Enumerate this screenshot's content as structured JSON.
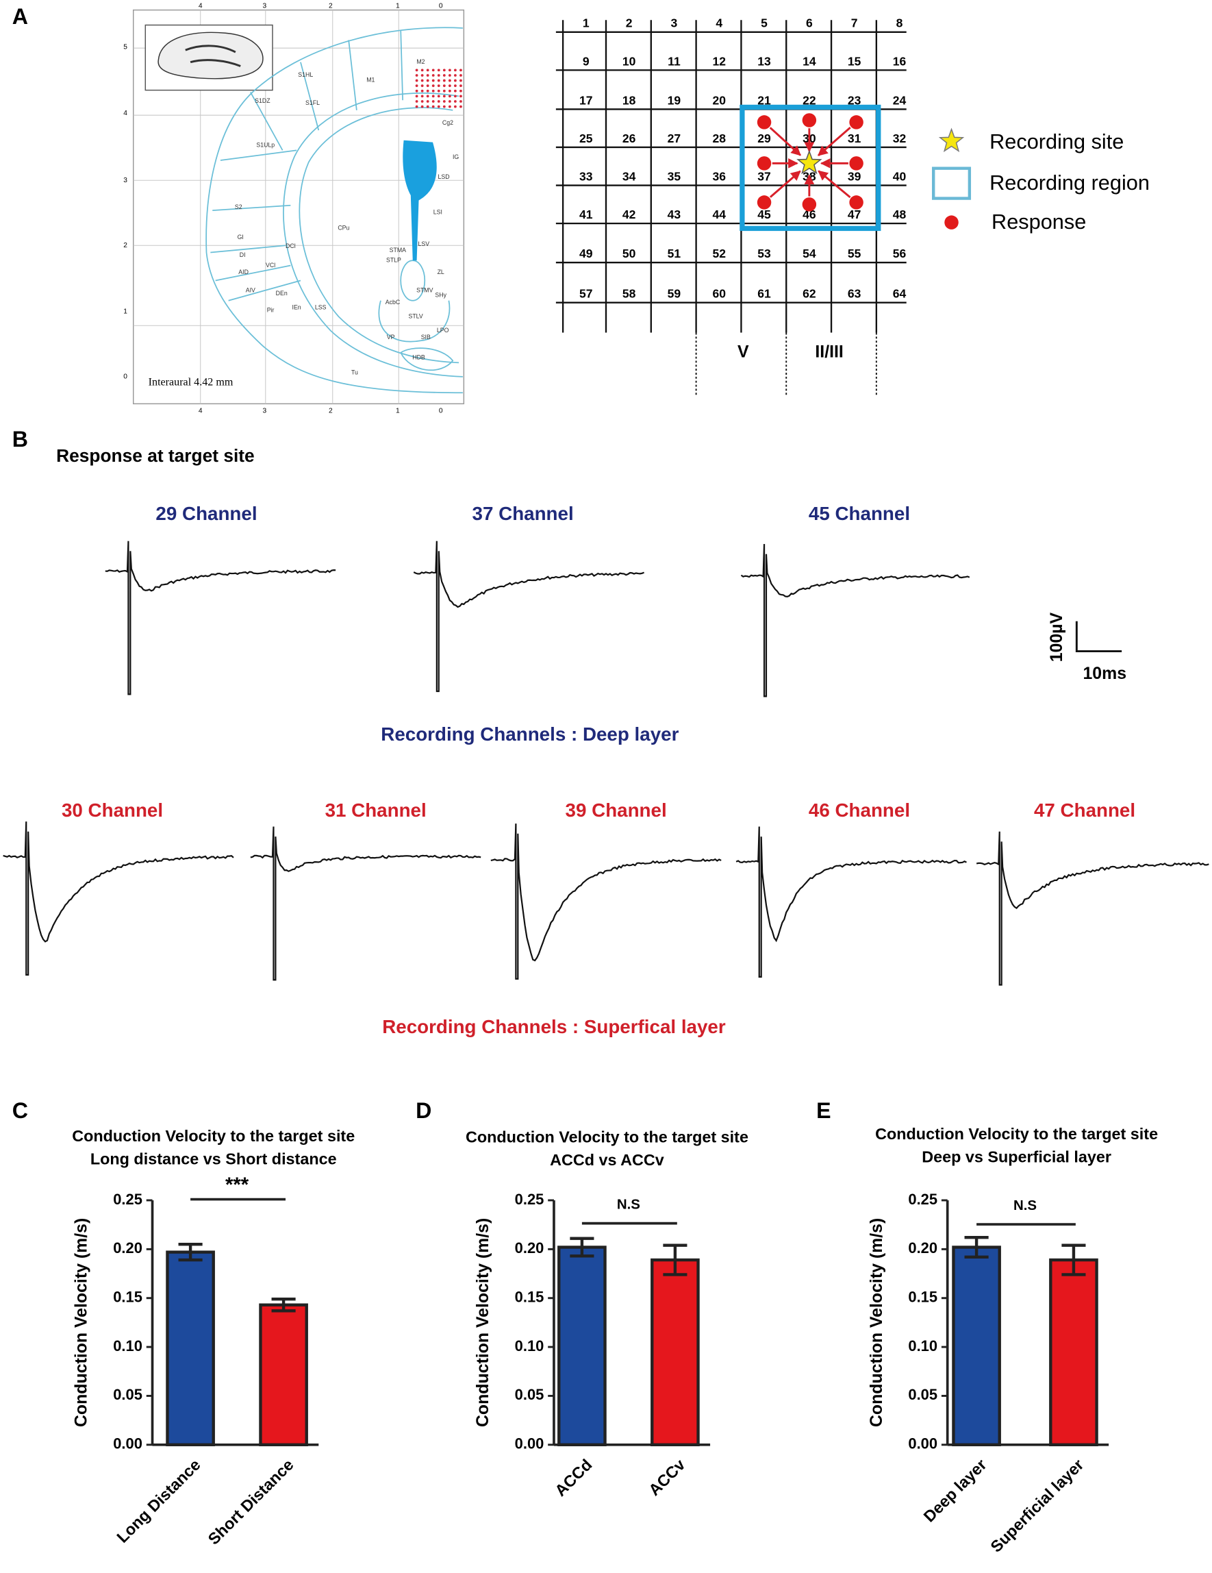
{
  "panels": [
    "A",
    "B",
    "C",
    "D",
    "E"
  ],
  "atlas": {
    "labels": [
      "M2",
      "M1",
      "S1HL",
      "S1FL",
      "S1DZ",
      "S1ULp",
      "S2",
      "GI",
      "DI",
      "AID",
      "AIV",
      "Pir",
      "DEn",
      "IEn",
      "LSS",
      "DCl",
      "VCl",
      "CPu",
      "Cg2",
      "IG",
      "LSD",
      "LSI",
      "LSV",
      "STMA",
      "STLP",
      "AcbC",
      "STMV",
      "SHy",
      "STLV",
      "VP",
      "HDB",
      "SIB",
      "LPO",
      "Tu",
      "ZL"
    ],
    "top_ticks": [
      4,
      3,
      2,
      1,
      0
    ],
    "left_ticks": [
      5,
      4,
      3,
      2,
      1,
      0
    ],
    "bottom_ticks": [
      4,
      3,
      2,
      1,
      0
    ],
    "caption": "Interaural 4.42 mm"
  },
  "grid": {
    "labels": [
      1,
      2,
      3,
      4,
      5,
      6,
      7,
      8,
      9,
      10,
      11,
      12,
      13,
      14,
      15,
      16,
      17,
      18,
      19,
      20,
      21,
      22,
      23,
      24,
      25,
      26,
      27,
      28,
      29,
      30,
      31,
      32,
      33,
      34,
      35,
      36,
      37,
      38,
      39,
      40,
      41,
      42,
      43,
      44,
      45,
      46,
      47,
      48,
      49,
      50,
      51,
      52,
      53,
      54,
      55,
      56,
      57,
      58,
      59,
      60,
      61,
      62,
      63,
      64
    ],
    "layers": [
      "V",
      "II/III"
    ]
  },
  "legend": [
    "Recording site",
    "Recording region",
    "Response"
  ],
  "traces": {
    "title": "Response at target site",
    "deep": {
      "channels": [
        "29 Channel",
        "37 Channel",
        "45 Channel"
      ],
      "caption": "Recording Channels : Deep layer"
    },
    "superficial": {
      "channels": [
        "30 Channel",
        "31 Channel",
        "39 Channel",
        "46 Channel",
        "47 Channel"
      ],
      "caption": "Recording Channels : Superfical layer"
    },
    "scale": [
      "100µV",
      "10ms"
    ]
  },
  "chart_data": [
    {
      "type": "bar",
      "title": "Conduction Velocity to the target site",
      "subtitle": "Long distance vs Short distance",
      "y_label": "Conduction Velocity (m/s)",
      "categories": [
        "Long Distance",
        "Short Distance"
      ],
      "values": [
        0.197,
        0.143
      ],
      "errors": [
        0.008,
        0.006
      ],
      "colors": [
        "#1d4a9c",
        "#e5171d"
      ],
      "ylim": [
        0,
        0.25
      ],
      "yticks": [
        {
          "value": 0,
          "label": "0.00"
        },
        0.05,
        {
          "value": 0.1,
          "label": "0.10"
        },
        0.15,
        {
          "value": 0.2,
          "label": "0.20"
        },
        0.25
      ],
      "annotation": "***"
    },
    {
      "type": "bar",
      "title": "Conduction Velocity to the target site",
      "subtitle": "ACCd vs ACCv",
      "y_label": "Conduction Velocity (m/s)",
      "categories": [
        "ACCd",
        "ACCv"
      ],
      "values": [
        0.202,
        0.189
      ],
      "errors": [
        0.009,
        0.015
      ],
      "colors": [
        "#1d4a9c",
        "#e5171d"
      ],
      "ylim": [
        0,
        0.25
      ],
      "yticks": [
        {
          "value": 0,
          "label": "0.00"
        },
        0.05,
        {
          "value": 0.1,
          "label": "0.10"
        },
        0.15,
        {
          "value": 0.2,
          "label": "0.20"
        },
        0.25
      ],
      "annotation": "N.S"
    },
    {
      "type": "bar",
      "title": "Conduction Velocity to the target site",
      "subtitle": "Deep vs Superficial layer",
      "y_label": "Conduction Velocity (m/s)",
      "categories": [
        "Deep layer",
        "Superficial layer"
      ],
      "values": [
        0.202,
        0.189
      ],
      "errors": [
        0.01,
        0.015
      ],
      "colors": [
        "#1d4a9c",
        "#e5171d"
      ],
      "ylim": [
        0,
        0.25
      ],
      "yticks": [
        {
          "value": 0,
          "label": "0.00"
        },
        0.05,
        {
          "value": 0.1,
          "label": "0.10"
        },
        0.15,
        {
          "value": 0.2,
          "label": "0.20"
        },
        0.25
      ],
      "annotation": "N.S"
    }
  ]
}
